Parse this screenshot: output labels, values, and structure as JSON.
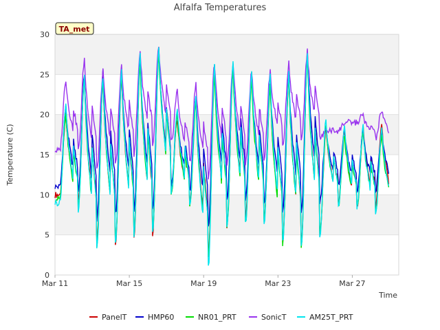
{
  "chart_data": {
    "type": "line",
    "title": "Alfalfa Temperatures",
    "xlabel": "Time",
    "ylabel": "Temperature (C)",
    "tag": "TA_met",
    "xlim_day": [
      11,
      29.5
    ],
    "ylim": [
      0,
      30
    ],
    "yticks": [
      0,
      5,
      10,
      15,
      20,
      25,
      30
    ],
    "xticks": [
      {
        "day": 11,
        "label": "Mar 11"
      },
      {
        "day": 15,
        "label": "Mar 15"
      },
      {
        "day": 19,
        "label": "Mar 19"
      },
      {
        "day": 23,
        "label": "Mar 23"
      },
      {
        "day": 27,
        "label": "Mar 27"
      }
    ],
    "grid": "horizontal bands",
    "legend_position": "bottom",
    "days": [
      11,
      12,
      13,
      14,
      15,
      16,
      17,
      18,
      19,
      20,
      21,
      22,
      23,
      24,
      25,
      26,
      27,
      28
    ],
    "series": [
      {
        "name": "PanelT",
        "color": "#cc0000",
        "mins": [
          10,
          9,
          4,
          4,
          5,
          5,
          10.5,
          9,
          2.5,
          6,
          7,
          7,
          4,
          3.5,
          5,
          9,
          8.5,
          8.5
        ],
        "maxs": [
          20,
          25,
          25,
          25,
          27,
          28.5,
          19.5,
          22,
          26,
          26,
          25,
          24,
          25,
          28,
          18.5,
          18,
          18.5,
          19
        ]
      },
      {
        "name": "HMP60",
        "color": "#0000cc",
        "mins": [
          11,
          10.5,
          7,
          7.5,
          8,
          8,
          11,
          10.5,
          6,
          9,
          9.5,
          9,
          8,
          7.5,
          9,
          11,
          10.5,
          10.5
        ],
        "maxs": [
          21,
          25,
          25.5,
          25.5,
          27,
          28.5,
          20.5,
          22.5,
          26,
          26,
          25,
          24,
          25,
          28,
          18.5,
          18,
          18,
          18
        ]
      },
      {
        "name": "NR01_PRT",
        "color": "#00dd00",
        "mins": [
          9.5,
          8.5,
          3.5,
          4,
          5,
          5.5,
          10,
          8.5,
          2,
          6,
          6.5,
          6.5,
          4,
          3.5,
          5,
          8.5,
          8.5,
          8
        ],
        "maxs": [
          20,
          24.5,
          24.5,
          25,
          26.5,
          28,
          20,
          21.5,
          25,
          25.5,
          24.5,
          23.5,
          24.5,
          27.5,
          19,
          17.5,
          18,
          17.5
        ]
      },
      {
        "name": "SonicT",
        "color": "#9933ee",
        "mins": [
          15.5,
          15.5,
          13,
          14,
          15,
          16,
          16.5,
          14,
          12,
          13.5,
          14,
          14.5,
          16,
          16.5,
          17,
          18,
          19,
          17
        ],
        "maxs": [
          24.5,
          27,
          25.5,
          26,
          28,
          28.5,
          23,
          24,
          26.5,
          26.5,
          25.5,
          25.5,
          26.5,
          28,
          18,
          19,
          20,
          20.5
        ]
      },
      {
        "name": "AM25T_PRT",
        "color": "#00e5ee",
        "mins": [
          9,
          8,
          3.5,
          4,
          5,
          5.5,
          10,
          8.5,
          1,
          6,
          6.5,
          6.5,
          4,
          3.5,
          5,
          8.5,
          8.5,
          7.5
        ],
        "maxs": [
          21.5,
          25,
          25,
          25.5,
          27.5,
          28.5,
          21,
          22.5,
          26.5,
          26.5,
          25.5,
          25,
          25.5,
          28,
          19.5,
          18.5,
          18.5,
          18.5
        ]
      }
    ]
  }
}
